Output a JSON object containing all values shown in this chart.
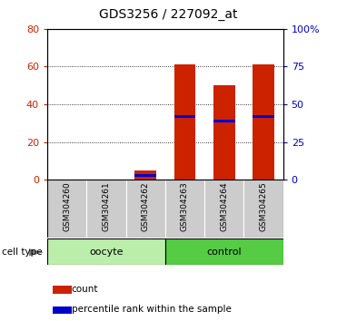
{
  "title": "GDS3256 / 227092_at",
  "samples": [
    "GSM304260",
    "GSM304261",
    "GSM304262",
    "GSM304263",
    "GSM304264",
    "GSM304265"
  ],
  "count_values": [
    0,
    0,
    5,
    61,
    50,
    61
  ],
  "percentile_values": [
    0,
    0,
    3,
    42,
    39,
    42
  ],
  "groups": [
    {
      "name": "oocyte",
      "indices": [
        0,
        1,
        2
      ],
      "color": "#bbeeaa"
    },
    {
      "name": "control",
      "indices": [
        3,
        4,
        5
      ],
      "color": "#55cc44"
    }
  ],
  "left_ylim": [
    0,
    80
  ],
  "right_ylim": [
    0,
    100
  ],
  "left_yticks": [
    0,
    20,
    40,
    60,
    80
  ],
  "right_yticks": [
    0,
    25,
    50,
    75,
    100
  ],
  "right_yticklabels": [
    "0",
    "25",
    "50",
    "75",
    "100%"
  ],
  "bar_color": "#cc2200",
  "percentile_color": "#0000cc",
  "bar_width": 0.55,
  "bg_color": "#ffffff",
  "tick_label_color_left": "#cc2200",
  "tick_label_color_right": "#0000cc",
  "legend_count_label": "count",
  "legend_percentile_label": "percentile rank within the sample",
  "cell_type_label": "cell type",
  "sample_box_color": "#cccccc",
  "spine_color": "#333333"
}
